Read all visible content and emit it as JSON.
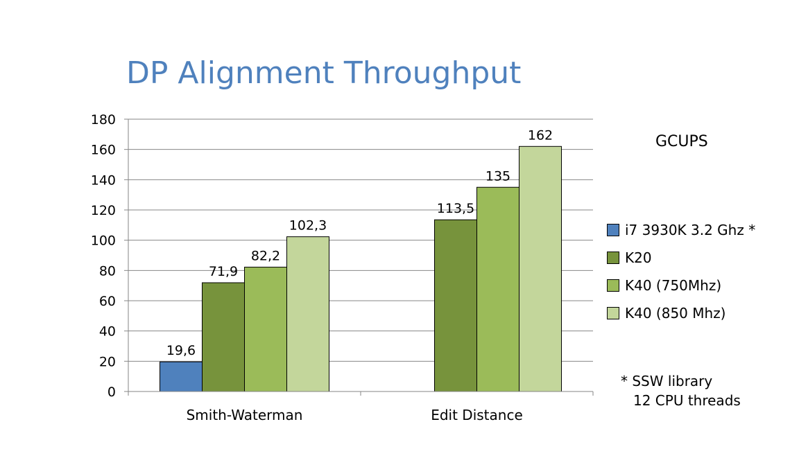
{
  "slide": {
    "title": "DP Alignment Throughput",
    "unit_label": "GCUPS",
    "footnote": [
      "* SSW library",
      "12 CPU threads"
    ]
  },
  "chart_data": {
    "type": "bar",
    "title": "",
    "xlabel": "",
    "ylabel": "",
    "categories": [
      "Smith-Waterman",
      "Edit Distance"
    ],
    "series": [
      {
        "name": "i7 3930K 3.2 Ghz *",
        "color": "#4f81bd",
        "values": [
          19.6,
          null
        ],
        "labels": [
          "19,6",
          ""
        ]
      },
      {
        "name": "K20",
        "color": "#77933c",
        "values": [
          71.9,
          113.5
        ],
        "labels": [
          "71,9",
          "113,5"
        ]
      },
      {
        "name": "K40 (750Mhz)",
        "color": "#9bbb59",
        "values": [
          82.2,
          135
        ],
        "labels": [
          "82,2",
          "135"
        ]
      },
      {
        "name": "K40 (850 Mhz)",
        "color": "#c3d69b",
        "values": [
          102.3,
          162
        ],
        "labels": [
          "102,3",
          "162"
        ]
      }
    ],
    "ylim": [
      0,
      180
    ],
    "yticks": [
      0,
      20,
      40,
      60,
      80,
      100,
      120,
      140,
      160,
      180
    ],
    "grid": true,
    "legend_position": "right"
  }
}
